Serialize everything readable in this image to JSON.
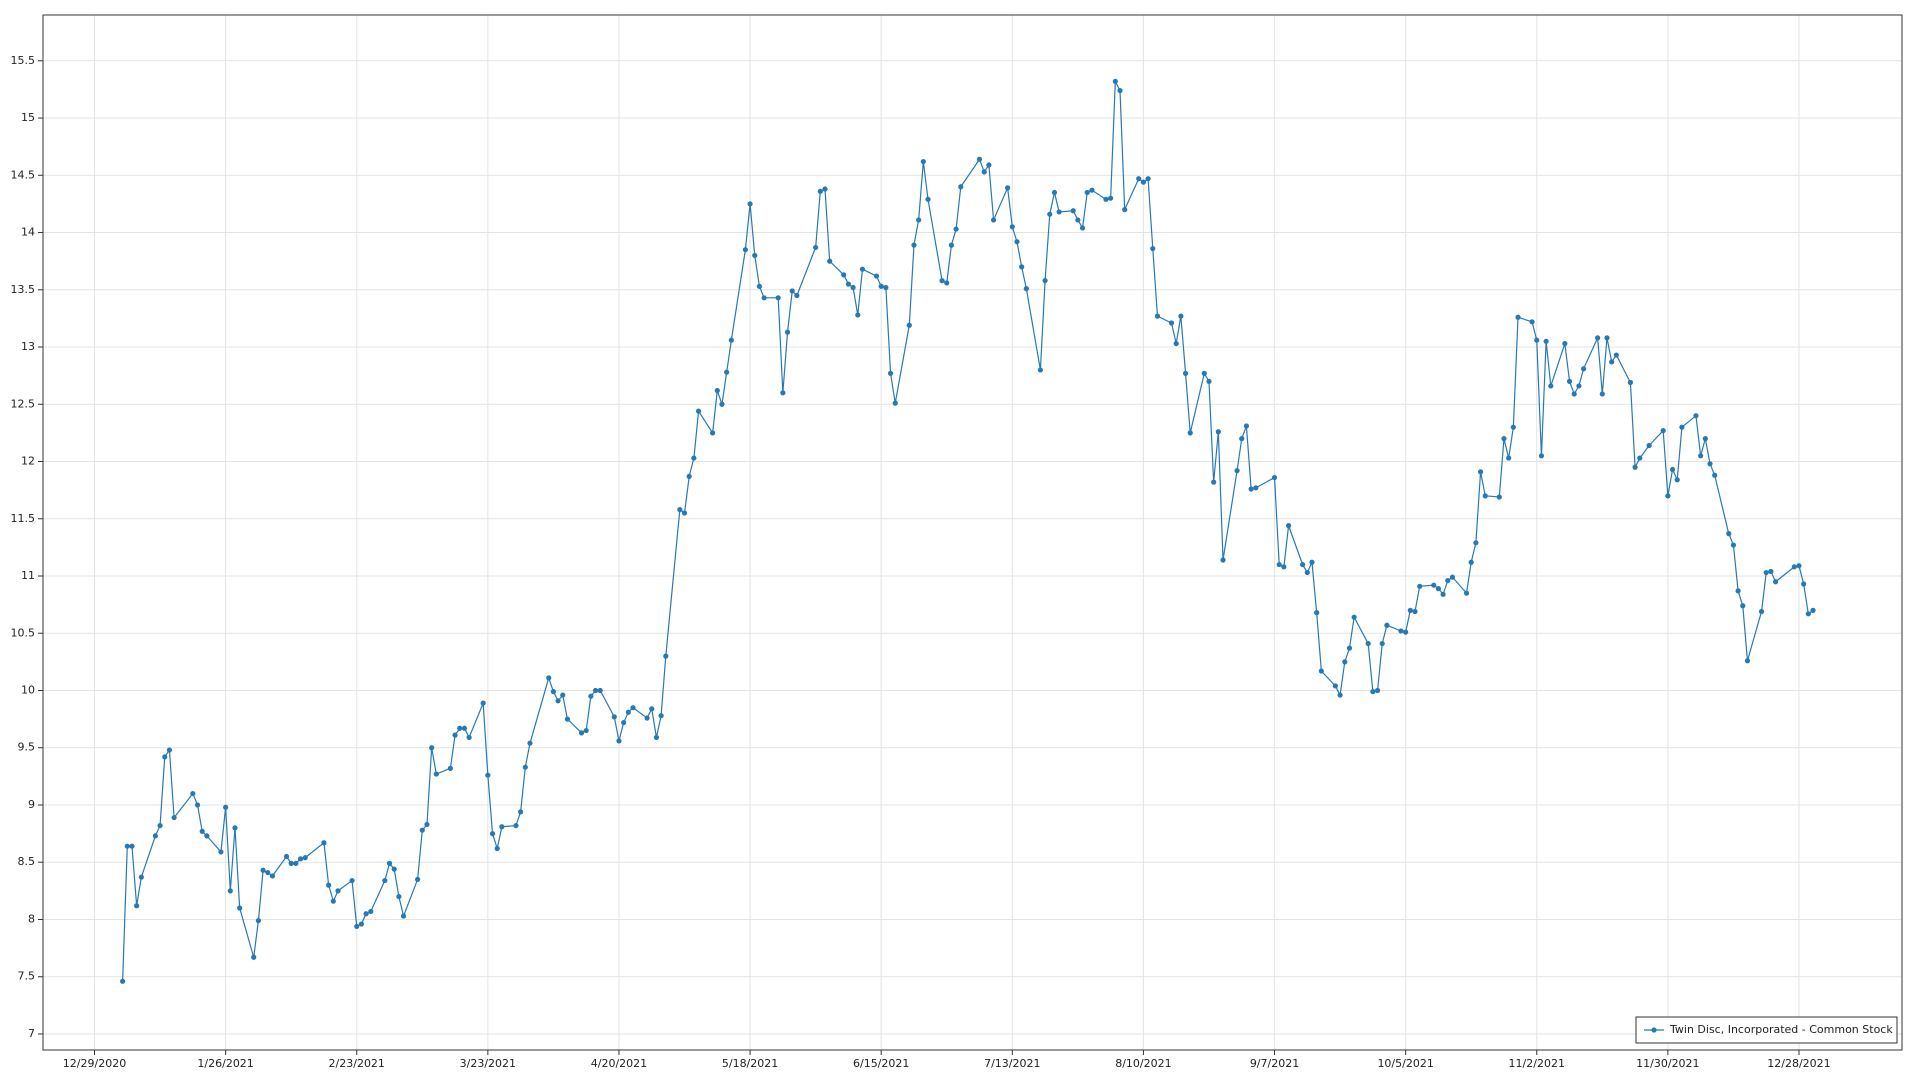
{
  "chart_data": {
    "type": "line",
    "x": [
      "1/4/2021",
      "1/5/2021",
      "1/6/2021",
      "1/7/2021",
      "1/8/2021",
      "1/11/2021",
      "1/12/2021",
      "1/13/2021",
      "1/14/2021",
      "1/15/2021",
      "1/19/2021",
      "1/20/2021",
      "1/21/2021",
      "1/22/2021",
      "1/25/2021",
      "1/26/2021",
      "1/27/2021",
      "1/28/2021",
      "1/29/2021",
      "2/1/2021",
      "2/2/2021",
      "2/3/2021",
      "2/4/2021",
      "2/5/2021",
      "2/8/2021",
      "2/9/2021",
      "2/10/2021",
      "2/11/2021",
      "2/12/2021",
      "2/16/2021",
      "2/17/2021",
      "2/18/2021",
      "2/19/2021",
      "2/22/2021",
      "2/23/2021",
      "2/24/2021",
      "2/25/2021",
      "2/26/2021",
      "3/1/2021",
      "3/2/2021",
      "3/3/2021",
      "3/4/2021",
      "3/5/2021",
      "3/8/2021",
      "3/9/2021",
      "3/10/2021",
      "3/11/2021",
      "3/12/2021",
      "3/15/2021",
      "3/16/2021",
      "3/17/2021",
      "3/18/2021",
      "3/19/2021",
      "3/22/2021",
      "3/23/2021",
      "3/24/2021",
      "3/25/2021",
      "3/26/2021",
      "3/29/2021",
      "3/30/2021",
      "3/31/2021",
      "4/1/2021",
      "4/5/2021",
      "4/6/2021",
      "4/7/2021",
      "4/8/2021",
      "4/9/2021",
      "4/12/2021",
      "4/13/2021",
      "4/14/2021",
      "4/15/2021",
      "4/16/2021",
      "4/19/2021",
      "4/20/2021",
      "4/21/2021",
      "4/22/2021",
      "4/23/2021",
      "4/26/2021",
      "4/27/2021",
      "4/28/2021",
      "4/29/2021",
      "4/30/2021",
      "5/3/2021",
      "5/4/2021",
      "5/5/2021",
      "5/6/2021",
      "5/7/2021",
      "5/10/2021",
      "5/11/2021",
      "5/12/2021",
      "5/13/2021",
      "5/14/2021",
      "5/17/2021",
      "5/18/2021",
      "5/19/2021",
      "5/20/2021",
      "5/21/2021",
      "5/24/2021",
      "5/25/2021",
      "5/26/2021",
      "5/27/2021",
      "5/28/2021",
      "6/1/2021",
      "6/2/2021",
      "6/3/2021",
      "6/4/2021",
      "6/7/2021",
      "6/8/2021",
      "6/9/2021",
      "6/10/2021",
      "6/11/2021",
      "6/14/2021",
      "6/15/2021",
      "6/16/2021",
      "6/17/2021",
      "6/18/2021",
      "6/21/2021",
      "6/22/2021",
      "6/23/2021",
      "6/24/2021",
      "6/25/2021",
      "6/28/2021",
      "6/29/2021",
      "6/30/2021",
      "7/1/2021",
      "7/2/2021",
      "7/6/2021",
      "7/7/2021",
      "7/8/2021",
      "7/9/2021",
      "7/12/2021",
      "7/13/2021",
      "7/14/2021",
      "7/15/2021",
      "7/16/2021",
      "7/19/2021",
      "7/20/2021",
      "7/21/2021",
      "7/22/2021",
      "7/23/2021",
      "7/26/2021",
      "7/27/2021",
      "7/28/2021",
      "7/29/2021",
      "7/30/2021",
      "8/2/2021",
      "8/3/2021",
      "8/4/2021",
      "8/5/2021",
      "8/6/2021",
      "8/9/2021",
      "8/10/2021",
      "8/11/2021",
      "8/12/2021",
      "8/13/2021",
      "8/16/2021",
      "8/17/2021",
      "8/18/2021",
      "8/19/2021",
      "8/20/2021",
      "8/23/2021",
      "8/24/2021",
      "8/25/2021",
      "8/26/2021",
      "8/27/2021",
      "8/30/2021",
      "8/31/2021",
      "9/1/2021",
      "9/2/2021",
      "9/3/2021",
      "9/7/2021",
      "9/8/2021",
      "9/9/2021",
      "9/10/2021",
      "9/13/2021",
      "9/14/2021",
      "9/15/2021",
      "9/16/2021",
      "9/17/2021",
      "9/20/2021",
      "9/21/2021",
      "9/22/2021",
      "9/23/2021",
      "9/24/2021",
      "9/27/2021",
      "9/28/2021",
      "9/29/2021",
      "9/30/2021",
      "10/1/2021",
      "10/4/2021",
      "10/5/2021",
      "10/6/2021",
      "10/7/2021",
      "10/8/2021",
      "10/11/2021",
      "10/12/2021",
      "10/13/2021",
      "10/14/2021",
      "10/15/2021",
      "10/18/2021",
      "10/19/2021",
      "10/20/2021",
      "10/21/2021",
      "10/22/2021",
      "10/25/2021",
      "10/26/2021",
      "10/27/2021",
      "10/28/2021",
      "10/29/2021",
      "11/1/2021",
      "11/2/2021",
      "11/3/2021",
      "11/4/2021",
      "11/5/2021",
      "11/8/2021",
      "11/9/2021",
      "11/10/2021",
      "11/11/2021",
      "11/12/2021",
      "11/15/2021",
      "11/16/2021",
      "11/17/2021",
      "11/18/2021",
      "11/19/2021",
      "11/22/2021",
      "11/23/2021",
      "11/24/2021",
      "11/26/2021",
      "11/29/2021",
      "11/30/2021",
      "12/1/2021",
      "12/2/2021",
      "12/3/2021",
      "12/6/2021",
      "12/7/2021",
      "12/8/2021",
      "12/9/2021",
      "12/10/2021",
      "12/13/2021",
      "12/14/2021",
      "12/15/2021",
      "12/16/2021",
      "12/17/2021",
      "12/20/2021",
      "12/21/2021",
      "12/22/2021",
      "12/23/2021",
      "12/27/2021",
      "12/28/2021",
      "12/29/2021",
      "12/30/2021",
      "12/31/2021"
    ],
    "series": [
      {
        "name": "Twin Disc, Incorporated - Common Stock",
        "color": "#2779b6",
        "values": [
          7.46,
          8.64,
          8.64,
          8.12,
          8.37,
          8.73,
          8.82,
          9.42,
          9.48,
          8.89,
          9.1,
          9.0,
          8.77,
          8.73,
          8.59,
          8.98,
          8.25,
          8.8,
          8.1,
          7.67,
          7.99,
          8.43,
          8.41,
          8.38,
          8.55,
          8.49,
          8.49,
          8.53,
          8.54,
          8.67,
          8.3,
          8.16,
          8.25,
          8.34,
          7.94,
          7.96,
          8.05,
          8.07,
          8.34,
          8.49,
          8.44,
          8.2,
          8.03,
          8.35,
          8.78,
          8.83,
          9.5,
          9.27,
          9.32,
          9.61,
          9.67,
          9.67,
          9.59,
          9.89,
          9.26,
          8.75,
          8.62,
          8.81,
          8.82,
          8.94,
          9.33,
          9.54,
          10.11,
          9.99,
          9.91,
          9.96,
          9.75,
          9.63,
          9.65,
          9.95,
          10.0,
          10.0,
          9.77,
          9.56,
          9.72,
          9.81,
          9.85,
          9.76,
          9.84,
          9.59,
          9.78,
          10.3,
          11.58,
          11.55,
          11.87,
          12.03,
          12.44,
          12.25,
          12.62,
          12.5,
          12.78,
          13.06,
          13.85,
          14.25,
          13.8,
          13.53,
          13.43,
          13.43,
          12.6,
          13.13,
          13.49,
          13.45,
          13.87,
          14.36,
          14.38,
          13.75,
          13.63,
          13.55,
          13.52,
          13.28,
          13.68,
          13.62,
          13.53,
          13.52,
          12.77,
          12.51,
          13.19,
          13.89,
          14.11,
          14.62,
          14.29,
          13.58,
          13.56,
          13.89,
          14.03,
          14.4,
          14.64,
          14.53,
          14.59,
          14.11,
          14.39,
          14.05,
          13.92,
          13.7,
          13.51,
          12.8,
          13.58,
          14.16,
          14.35,
          14.18,
          14.19,
          14.11,
          14.04,
          14.35,
          14.37,
          14.29,
          14.3,
          15.32,
          15.24,
          14.2,
          14.47,
          14.44,
          14.47,
          13.86,
          13.27,
          13.21,
          13.03,
          13.27,
          12.77,
          12.25,
          12.77,
          12.7,
          11.82,
          12.26,
          11.14,
          11.92,
          12.2,
          12.31,
          11.76,
          11.77,
          11.86,
          11.1,
          11.08,
          11.44,
          11.1,
          11.03,
          11.12,
          10.68,
          10.17,
          10.04,
          9.96,
          10.25,
          10.37,
          10.64,
          10.41,
          9.99,
          10.0,
          10.41,
          10.57,
          10.52,
          10.51,
          10.7,
          10.69,
          10.91,
          10.92,
          10.89,
          10.84,
          10.96,
          10.99,
          10.85,
          11.12,
          11.29,
          11.91,
          11.7,
          11.69,
          12.2,
          12.03,
          12.3,
          13.26,
          13.22,
          13.06,
          12.05,
          13.05,
          12.66,
          13.03,
          12.7,
          12.59,
          12.66,
          12.81,
          13.08,
          12.59,
          13.08,
          12.87,
          12.93,
          12.69,
          11.95,
          12.03,
          12.14,
          12.27,
          11.7,
          11.93,
          11.84,
          12.3,
          12.4,
          12.05,
          12.2,
          11.98,
          11.88,
          11.37,
          11.27,
          10.87,
          10.74,
          10.26,
          10.69,
          11.03,
          11.04,
          10.95,
          11.08,
          11.09,
          10.93,
          10.67,
          10.7
        ]
      }
    ],
    "xlim": [
      "12/18/2020",
      "1/19/2022"
    ],
    "xticks": [
      "12/29/2020",
      "1/26/2021",
      "2/23/2021",
      "3/23/2021",
      "4/20/2021",
      "5/18/2021",
      "6/15/2021",
      "7/13/2021",
      "8/10/2021",
      "9/7/2021",
      "10/5/2021",
      "11/2/2021",
      "11/30/2021",
      "12/28/2021"
    ],
    "ylim": [
      6.86,
      15.9
    ],
    "yticks": [
      7,
      7.5,
      8,
      8.5,
      9,
      9.5,
      10,
      10.5,
      11,
      11.5,
      12,
      12.5,
      13,
      13.5,
      14,
      14.5,
      15,
      15.5
    ],
    "grid": true,
    "legend": "lower-right"
  }
}
